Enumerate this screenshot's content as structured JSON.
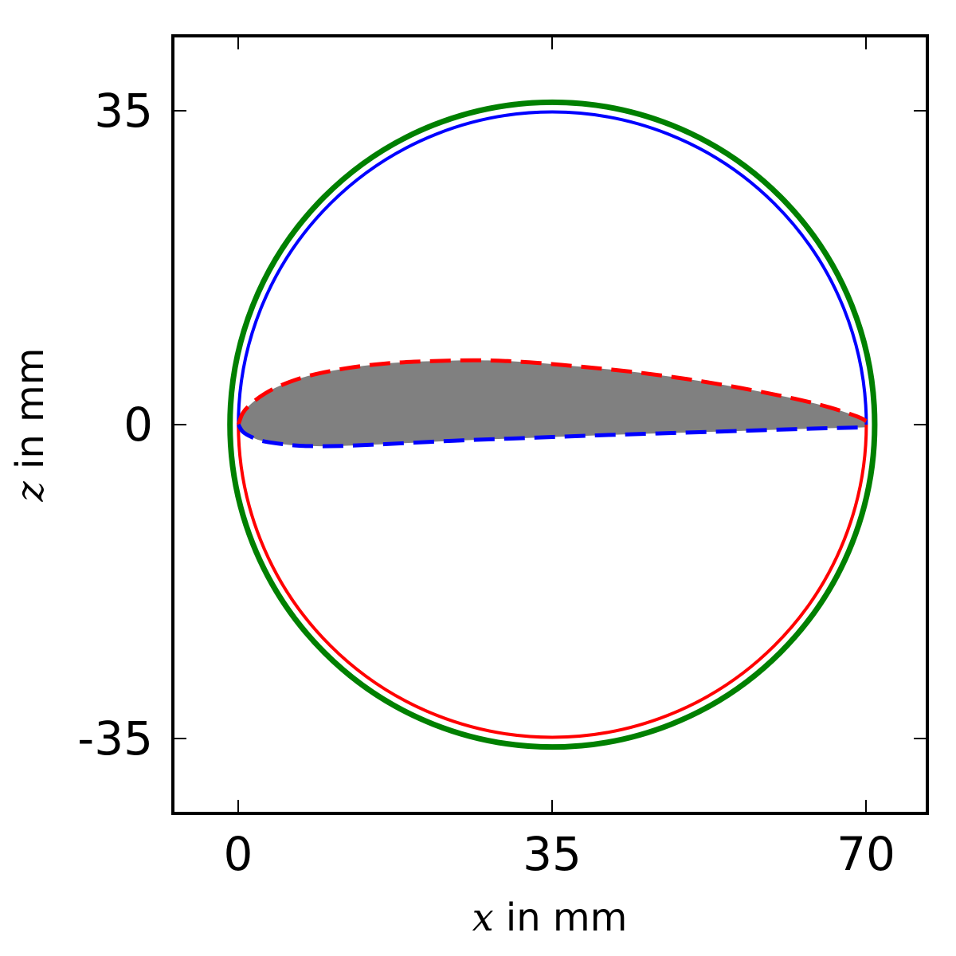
{
  "chart_data": {
    "type": "line",
    "title": "",
    "xlabel_var": "x",
    "xlabel_text": " in mm",
    "ylabel_var": "z",
    "ylabel_text": " in mm",
    "xlim": [
      -7.3,
      76.8
    ],
    "ylim": [
      -43.5,
      43.5
    ],
    "x_ticks": [
      0,
      35,
      70
    ],
    "y_ticks": [
      35,
      0,
      -35
    ],
    "x_tick_labels": [
      "0",
      "35",
      "70"
    ],
    "y_tick_labels": [
      "35",
      "0",
      "-35"
    ],
    "grid": false,
    "colors": {
      "outer_circle": "#008000",
      "upper_arc": "#0000ff",
      "lower_arc": "#ff0000",
      "airfoil_fill": "#808080",
      "airfoil_upper": "#ff0000",
      "airfoil_lower": "#0000ff"
    },
    "series": [
      {
        "kind": "circle",
        "cx": 35.0,
        "cz": 0.0,
        "r": 36.0,
        "color": "#008000",
        "style": "solid"
      },
      {
        "kind": "arc",
        "cx": 35.0,
        "cz": 0.0,
        "r": 35.0,
        "half": "upper",
        "color": "#0000ff",
        "style": "solid"
      },
      {
        "kind": "arc",
        "cx": 35.0,
        "cz": 0.0,
        "r": 35.0,
        "half": "lower",
        "color": "#ff0000",
        "style": "solid"
      },
      {
        "kind": "airfoil-upper",
        "color": "#ff0000",
        "style": "dashed",
        "x": [
          0.0,
          0.5,
          1.5,
          3.0,
          5.0,
          8.0,
          12.0,
          16.0,
          20.0,
          26.5,
          32.0,
          38.0,
          44.0,
          50.0,
          56.0,
          62.0,
          66.0,
          69.0,
          70.0
        ],
        "z": [
          0.0,
          1.3,
          2.4,
          3.5,
          4.5,
          5.5,
          6.3,
          6.8,
          7.05,
          7.2,
          7.0,
          6.5,
          5.9,
          5.1,
          4.1,
          2.9,
          1.9,
          0.9,
          0.4
        ]
      },
      {
        "kind": "airfoil-lower",
        "color": "#0000ff",
        "style": "dashed",
        "x": [
          0.0,
          0.5,
          1.5,
          3.0,
          6.0,
          8.0,
          11.0,
          16.0,
          24.0,
          32.0,
          40.0,
          48.0,
          56.0,
          64.0,
          70.0
        ],
        "z": [
          0.0,
          -0.8,
          -1.4,
          -1.9,
          -2.3,
          -2.4,
          -2.4,
          -2.2,
          -1.8,
          -1.5,
          -1.2,
          -0.95,
          -0.7,
          -0.45,
          -0.3
        ]
      }
    ]
  }
}
